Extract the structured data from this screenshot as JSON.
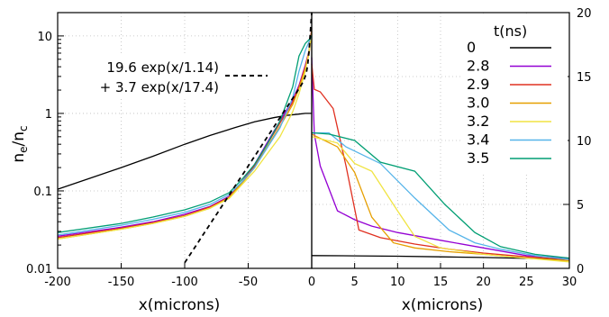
{
  "chart_data": [
    {
      "id": "left",
      "type": "line",
      "xlabel": "x(microns)",
      "ylabel_main": "n",
      "ylabel_sub1": "e",
      "ylabel_sep": "/n",
      "ylabel_sub2": "c",
      "ylabel": "ne/nc",
      "xlim": [
        -200,
        0
      ],
      "ylim": [
        0.01,
        20
      ],
      "yscale": "log",
      "xticks": [
        -200,
        -150,
        -100,
        -50,
        0
      ],
      "yticks": [
        0.01,
        0.1,
        1,
        10
      ],
      "ytick_labels": [
        "0.01",
        "0.1",
        "1",
        "10"
      ],
      "grid": true,
      "fit_label_line1": "19.6 exp(x/1.14)",
      "fit_label_line2": "+ 3.7 exp(x/17.4)",
      "fit": {
        "a": 19.6,
        "b": 1.14,
        "c": 3.7,
        "d": 17.4
      },
      "series": [
        {
          "name": "0",
          "color": "#000000",
          "x": [
            -200,
            -175,
            -150,
            -125,
            -100,
            -80,
            -60,
            -45,
            -30,
            -20,
            -10,
            -5,
            0
          ],
          "y": [
            0.105,
            0.145,
            0.2,
            0.28,
            0.4,
            0.52,
            0.66,
            0.78,
            0.88,
            0.94,
            0.98,
            1.0,
            1.0
          ]
        },
        {
          "name": "2.8",
          "color": "#9400d3",
          "x": [
            -200,
            -150,
            -125,
            -100,
            -80,
            -65,
            -55,
            -45,
            -35,
            -25,
            -15,
            -10,
            -5,
            -2,
            0
          ],
          "y": [
            0.026,
            0.034,
            0.04,
            0.05,
            0.063,
            0.085,
            0.13,
            0.22,
            0.42,
            0.8,
            1.5,
            2.3,
            4.2,
            6.5,
            10.5
          ]
        },
        {
          "name": "2.9",
          "color": "#e03020",
          "x": [
            -200,
            -150,
            -125,
            -100,
            -80,
            -65,
            -55,
            -45,
            -35,
            -25,
            -15,
            -10,
            -5,
            -2,
            0
          ],
          "y": [
            0.025,
            0.033,
            0.039,
            0.048,
            0.062,
            0.083,
            0.13,
            0.21,
            0.4,
            0.75,
            1.4,
            2.2,
            4.0,
            6.5,
            12.5
          ]
        },
        {
          "name": "3.0",
          "color": "#e69f00",
          "x": [
            -200,
            -150,
            -125,
            -100,
            -80,
            -65,
            -55,
            -45,
            -35,
            -25,
            -15,
            -10,
            -5,
            -2,
            0
          ],
          "y": [
            0.024,
            0.032,
            0.038,
            0.047,
            0.06,
            0.082,
            0.125,
            0.2,
            0.37,
            0.68,
            1.3,
            2.1,
            3.8,
            6.0,
            11.5
          ]
        },
        {
          "name": "3.2",
          "color": "#f0e442",
          "x": [
            -200,
            -150,
            -125,
            -100,
            -80,
            -65,
            -55,
            -45,
            -35,
            -25,
            -15,
            -10,
            -5,
            -2,
            0
          ],
          "y": [
            0.024,
            0.032,
            0.038,
            0.047,
            0.06,
            0.08,
            0.12,
            0.18,
            0.3,
            0.5,
            1.05,
            1.8,
            3.5,
            6.5,
            10.5
          ]
        },
        {
          "name": "3.4",
          "color": "#56b4e9",
          "x": [
            -200,
            -150,
            -125,
            -100,
            -80,
            -65,
            -55,
            -45,
            -35,
            -25,
            -15,
            -10,
            -5,
            -2,
            0
          ],
          "y": [
            0.027,
            0.036,
            0.043,
            0.053,
            0.067,
            0.09,
            0.13,
            0.2,
            0.36,
            0.65,
            1.6,
            3.5,
            6.5,
            8.5,
            10.0
          ]
        },
        {
          "name": "3.5",
          "color": "#009e73",
          "x": [
            -200,
            -150,
            -125,
            -100,
            -80,
            -65,
            -55,
            -45,
            -35,
            -25,
            -15,
            -10,
            -5,
            -2,
            0
          ],
          "y": [
            0.029,
            0.038,
            0.046,
            0.057,
            0.072,
            0.095,
            0.14,
            0.22,
            0.4,
            0.8,
            2.2,
            5.5,
            8.0,
            9.0,
            10.0
          ]
        }
      ]
    },
    {
      "id": "right",
      "type": "line",
      "xlabel": "x(microns)",
      "xlim": [
        0,
        30
      ],
      "ylim": [
        0,
        20
      ],
      "xticks": [
        0,
        5,
        10,
        15,
        20,
        25,
        30
      ],
      "yticks": [
        0,
        5,
        10,
        15,
        20
      ],
      "grid": true,
      "legend_title": "t(ns)",
      "legend_position": "top-right",
      "series": [
        {
          "name": "0",
          "color": "#000000",
          "x": [
            0,
            5,
            10,
            15,
            20,
            25,
            30
          ],
          "y": [
            1.0,
            0.98,
            0.95,
            0.9,
            0.85,
            0.78,
            0.72
          ]
        },
        {
          "name": "2.8",
          "color": "#9400d3",
          "x": [
            0,
            0.3,
            1,
            3,
            5,
            7,
            10,
            15,
            20,
            25,
            30
          ],
          "y": [
            16.5,
            10.5,
            8.0,
            4.5,
            3.8,
            3.3,
            2.8,
            2.2,
            1.6,
            1.0,
            0.8
          ]
        },
        {
          "name": "2.9",
          "color": "#e03020",
          "x": [
            0,
            0.3,
            1,
            2.5,
            4,
            5.5,
            8,
            12,
            16,
            20,
            25,
            30
          ],
          "y": [
            16.0,
            14.0,
            13.8,
            12.5,
            8.0,
            3.0,
            2.4,
            1.9,
            1.5,
            1.2,
            0.9,
            0.7
          ]
        },
        {
          "name": "3.0",
          "color": "#e69f00",
          "x": [
            0,
            3,
            5,
            7,
            9.5,
            12,
            16,
            20,
            25,
            30
          ],
          "y": [
            10.5,
            9.5,
            7.5,
            4.0,
            2.0,
            1.6,
            1.3,
            1.1,
            0.8,
            0.6
          ]
        },
        {
          "name": "3.2",
          "color": "#f0e442",
          "x": [
            0,
            3,
            5,
            7,
            10,
            12,
            15,
            20,
            25,
            30
          ],
          "y": [
            10.3,
            9.8,
            8.2,
            7.6,
            4.5,
            2.5,
            1.6,
            1.1,
            0.8,
            0.5
          ]
        },
        {
          "name": "3.4",
          "color": "#56b4e9",
          "x": [
            0,
            2,
            4,
            8,
            12,
            16,
            19,
            22,
            26,
            30
          ],
          "y": [
            10.6,
            10.6,
            9.5,
            8.2,
            5.5,
            3.0,
            2.0,
            1.5,
            1.0,
            0.7
          ]
        },
        {
          "name": "3.5",
          "color": "#009e73",
          "x": [
            0,
            2,
            5,
            8,
            12,
            15.5,
            19,
            22,
            26,
            30
          ],
          "y": [
            10.6,
            10.5,
            10.0,
            8.3,
            7.6,
            5.0,
            2.8,
            1.7,
            1.1,
            0.8
          ]
        }
      ]
    }
  ]
}
